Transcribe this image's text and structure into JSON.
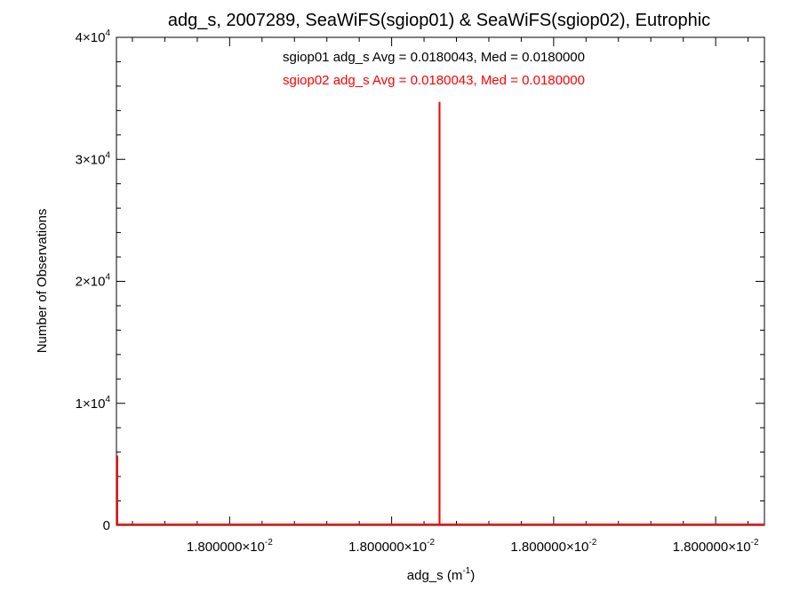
{
  "chart_data": {
    "type": "line",
    "title": "adg_s, 2007289, SeaWiFS(sgiop01) & SeaWiFS(sgiop02), Eutrophic",
    "xlabel": {
      "base": "adg_s (m",
      "sup": "-1",
      "tail": ")"
    },
    "ylabel": "Number of Observations",
    "ylim": [
      0,
      40000
    ],
    "y_ticks": [
      {
        "value": 0,
        "label": "0",
        "exp": ""
      },
      {
        "value": 10000,
        "label": "1×10",
        "exp": "4"
      },
      {
        "value": 20000,
        "label": "2×10",
        "exp": "4"
      },
      {
        "value": 30000,
        "label": "3×10",
        "exp": "4"
      },
      {
        "value": 40000,
        "label": "4×10",
        "exp": "4"
      }
    ],
    "x_ticks": [
      {
        "pos": 0.1747,
        "label": "1.800000×10",
        "exp": "-2"
      },
      {
        "pos": 0.4247,
        "label": "1.800000×10",
        "exp": "-2"
      },
      {
        "pos": 0.6747,
        "label": "1.800000×10",
        "exp": "-2"
      },
      {
        "pos": 0.9247,
        "label": "1.800000×10",
        "exp": "-2"
      }
    ],
    "series": [
      {
        "name": "sgiop01",
        "color": "#000000",
        "spikes": [
          {
            "pos": 0.0,
            "count": 5700
          },
          {
            "pos": 0.4986,
            "count": 34700
          }
        ]
      },
      {
        "name": "sgiop02",
        "color": "#ff0000",
        "spikes": [
          {
            "pos": 0.0,
            "count": 5700
          },
          {
            "pos": 0.4986,
            "count": 34700
          }
        ]
      }
    ],
    "annotations": [
      {
        "text": "sgiop01 adg_s Avg = 0.0180043, Med = 0.0180000",
        "color": "#000000"
      },
      {
        "text": "sgiop02 adg_s Avg = 0.0180043, Med = 0.0180000",
        "color": "#ff0000"
      }
    ],
    "grid": false
  }
}
